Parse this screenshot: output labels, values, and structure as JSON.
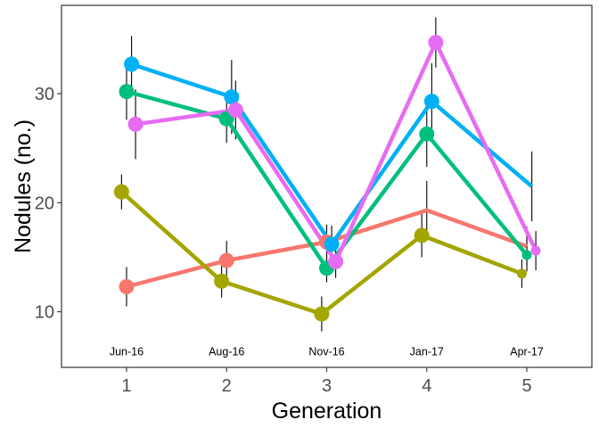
{
  "chart_data": {
    "type": "line",
    "title": "",
    "xlabel": "Generation",
    "ylabel": "Nodules (no.)",
    "x": [
      1,
      2,
      3,
      4,
      5
    ],
    "x_tick_labels": [
      "1",
      "2",
      "3",
      "4",
      "5"
    ],
    "xlim": [
      0.35,
      5.65
    ],
    "ylim": [
      4.9,
      38.1
    ],
    "y_ticks": [
      10,
      20,
      30
    ],
    "y_tick_labels": [
      "10",
      "20",
      "30"
    ],
    "grid": false,
    "legend": "none",
    "annotations": [
      {
        "x": 1,
        "text": "Jun-16"
      },
      {
        "x": 2,
        "text": "Aug-16"
      },
      {
        "x": 3,
        "text": "Nov-16"
      },
      {
        "x": 4,
        "text": "Jan-17"
      },
      {
        "x": 5,
        "text": "Apr-17"
      }
    ],
    "series": [
      {
        "color": "#F8766D",
        "offset": 0.0,
        "y": [
          12.3,
          14.7,
          16.4,
          19.3,
          16.0
        ],
        "err": [
          1.8,
          1.8,
          1.6,
          2.7,
          1.8
        ],
        "point_visible": [
          true,
          true,
          true,
          false,
          false
        ]
      },
      {
        "color": "#A3A500",
        "offset": -0.05,
        "y": [
          21.0,
          12.8,
          9.8,
          17.0,
          13.5
        ],
        "err": [
          1.6,
          1.5,
          1.6,
          2.0,
          1.3
        ],
        "point_visible": [
          true,
          true,
          true,
          true,
          true
        ]
      },
      {
        "color": "#00BF7D",
        "offset": 0.0,
        "y": [
          30.2,
          27.7,
          14.0,
          26.3,
          15.2
        ],
        "err": [
          2.6,
          2.2,
          1.3,
          3.0,
          1.5
        ],
        "point_visible": [
          true,
          true,
          true,
          true,
          true
        ]
      },
      {
        "color": "#00B0F6",
        "offset": 0.05,
        "y": [
          32.7,
          29.7,
          16.2,
          29.3,
          21.5
        ],
        "err": [
          2.6,
          3.4,
          1.7,
          3.5,
          3.2
        ],
        "point_visible": [
          true,
          true,
          true,
          true,
          false
        ]
      },
      {
        "color": "#E76BF3",
        "offset": 0.09,
        "y": [
          27.2,
          28.5,
          14.6,
          34.7,
          15.6
        ],
        "err": [
          3.2,
          2.7,
          1.5,
          2.3,
          1.8
        ],
        "point_visible": [
          true,
          true,
          true,
          true,
          true
        ]
      }
    ]
  }
}
